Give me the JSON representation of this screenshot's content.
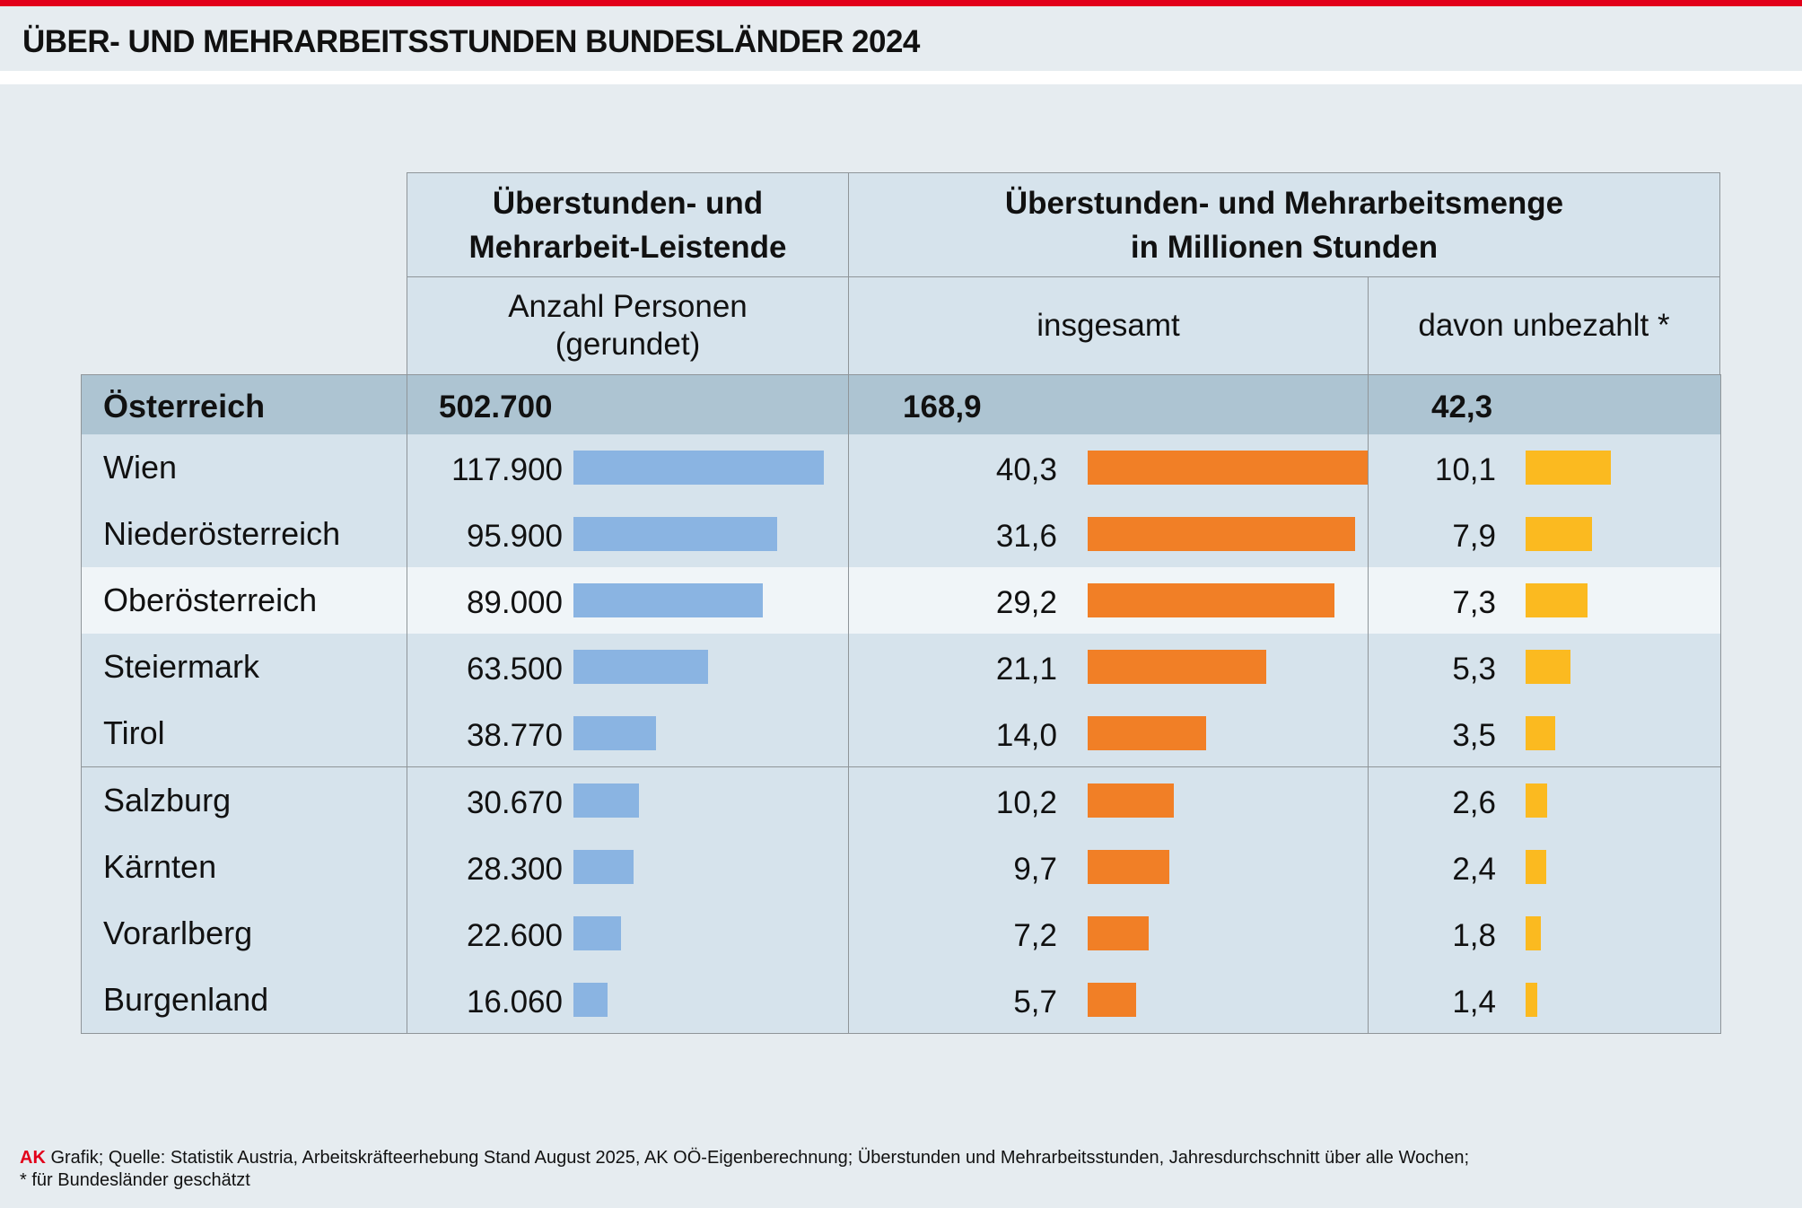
{
  "title": "ÜBER- UND MEHRARBEITSSTUNDEN BUNDESLÄNDER 2024",
  "colors": {
    "accent_red": "#e2001a",
    "persons_bar": "#8ab4e2",
    "total_bar": "#f17f26",
    "unpaid_bar": "#fbba20"
  },
  "chart_data": {
    "type": "table",
    "header_groups": [
      "Überstunden- und Mehrarbeit-Leistende",
      "Überstunden- und Mehrarbeitsmenge in Millionen Stunden"
    ],
    "header_group_lines": [
      [
        "Überstunden- und",
        "Mehrarbeit-Leistende"
      ],
      [
        "Überstunden- und Mehrarbeitsmenge",
        "in Millionen Stunden"
      ]
    ],
    "columns": [
      "Anzahl Personen (gerundet)",
      "insgesamt",
      "davon unbezahlt *"
    ],
    "column_lines": [
      [
        "Anzahl Personen",
        "(gerundet)"
      ],
      [
        "insgesamt"
      ],
      [
        "davon unbezahlt *"
      ]
    ],
    "total": {
      "label": "Österreich",
      "persons": "502.700",
      "hours_total": "168,9",
      "hours_unpaid": "42,3"
    },
    "rows": [
      {
        "label": "Wien",
        "persons": "117.900",
        "hours_total": "40,3",
        "hours_unpaid": "10,1",
        "v": [
          117900,
          40.3,
          10.1
        ]
      },
      {
        "label": "Niederösterreich",
        "persons": "95.900",
        "hours_total": "31,6",
        "hours_unpaid": "7,9",
        "v": [
          95900,
          31.6,
          7.9
        ]
      },
      {
        "label": "Oberösterreich",
        "persons": "89.000",
        "hours_total": "29,2",
        "hours_unpaid": "7,3",
        "v": [
          89000,
          29.2,
          7.3
        ],
        "highlight": true
      },
      {
        "label": "Steiermark",
        "persons": "63.500",
        "hours_total": "21,1",
        "hours_unpaid": "5,3",
        "v": [
          63500,
          21.1,
          5.3
        ]
      },
      {
        "label": "Tirol",
        "persons": "38.770",
        "hours_total": "14,0",
        "hours_unpaid": "3,5",
        "v": [
          38770,
          14.0,
          3.5
        ]
      },
      {
        "label": "Salzburg",
        "persons": "30.670",
        "hours_total": "10,2",
        "hours_unpaid": "2,6",
        "v": [
          30670,
          10.2,
          2.6
        ]
      },
      {
        "label": "Kärnten",
        "persons": "28.300",
        "hours_total": "9,7",
        "hours_unpaid": "2,4",
        "v": [
          28300,
          9.7,
          2.4
        ]
      },
      {
        "label": "Vorarlberg",
        "persons": "22.600",
        "hours_total": "7,2",
        "hours_unpaid": "1,8",
        "v": [
          22600,
          7.2,
          1.8
        ]
      },
      {
        "label": "Burgenland",
        "persons": "16.060",
        "hours_total": "5,7",
        "hours_unpaid": "1,4",
        "v": [
          16060,
          5.7,
          1.4
        ]
      }
    ]
  },
  "footer": {
    "brand": "AK",
    "line1": " Grafik;  Quelle: Statistik Austria, Arbeitskräfteerhebung Stand August 2025, AK OÖ-Eigenberechnung; Überstunden und Mehrarbeitsstunden, Jahresdurchschnitt über alle Wochen;",
    "line2": "* für Bundesländer geschätzt"
  }
}
